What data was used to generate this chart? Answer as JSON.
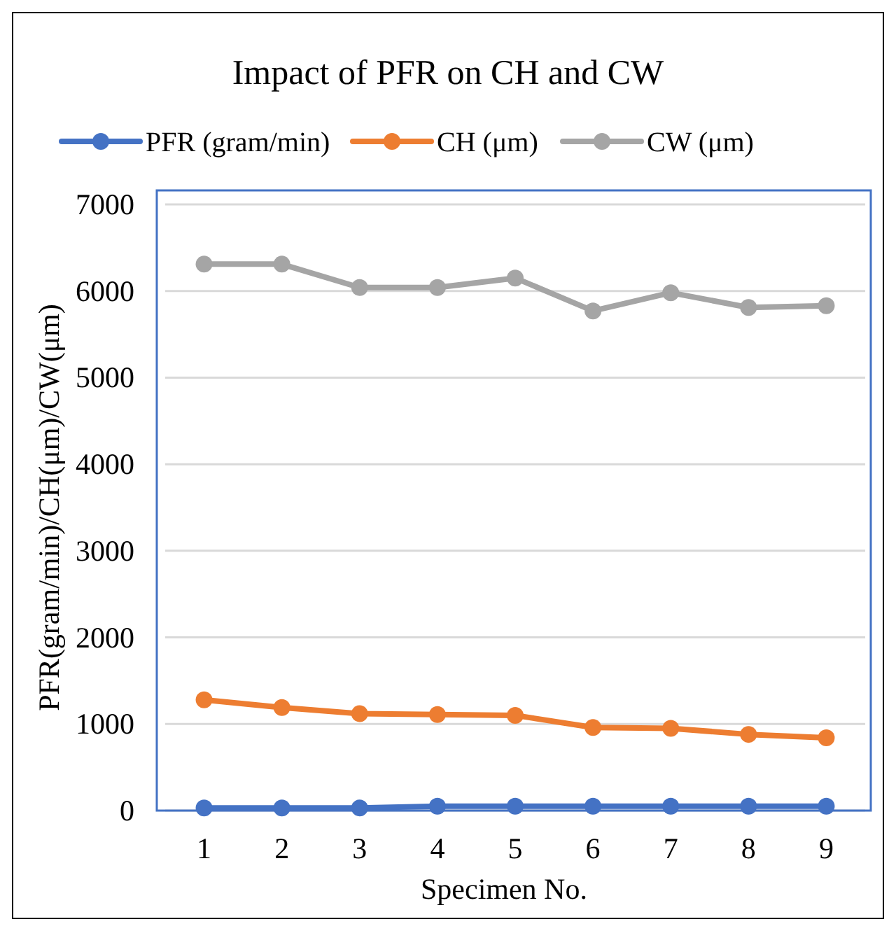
{
  "chart_data": {
    "type": "line",
    "title": "Impact of PFR on CH and CW",
    "xlabel": "Specimen No.",
    "ylabel": "PFR(gram/min)/CH(μm)/CW(μm)",
    "categories": [
      "1",
      "2",
      "3",
      "4",
      "5",
      "6",
      "7",
      "8",
      "9"
    ],
    "series": [
      {
        "name": "PFR (gram/min)",
        "color": "#4472c4",
        "values": [
          30,
          30,
          30,
          50,
          50,
          50,
          50,
          50,
          50
        ]
      },
      {
        "name": "CH (μm)",
        "color": "#ed7d31",
        "values": [
          1280,
          1190,
          1120,
          1110,
          1100,
          960,
          950,
          880,
          840
        ]
      },
      {
        "name": "CW (μm)",
        "color": "#a5a5a5",
        "values": [
          6310,
          6310,
          6040,
          6040,
          6150,
          5770,
          5980,
          5810,
          5830
        ]
      }
    ],
    "ylim": [
      0,
      7000
    ],
    "yticks": [
      0,
      1000,
      2000,
      3000,
      4000,
      5000,
      6000,
      7000
    ],
    "grid": "y",
    "legend": "top",
    "marker": "circle",
    "line_style": "solid"
  }
}
